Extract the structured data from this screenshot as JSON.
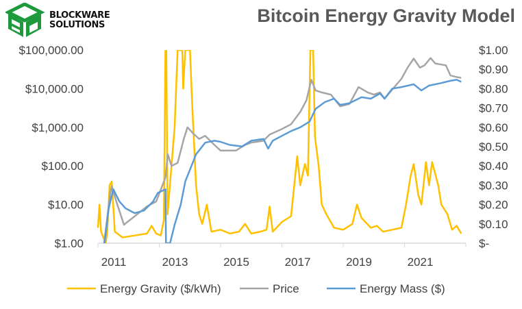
{
  "brand": {
    "line1": "BLOCKWARE",
    "line2": "SOLUTIONS"
  },
  "chart_data": {
    "type": "line",
    "title": "Bitcoin Energy Gravity Model",
    "x_ticks": [
      "2011",
      "2013",
      "2015",
      "2017",
      "2019",
      "2021"
    ],
    "xlim": [
      2011,
      2023.2
    ],
    "y_left": {
      "scale": "log",
      "range": [
        1,
        100000
      ],
      "ticks": [
        "$1.00",
        "$10.00",
        "$100.00",
        "$1,000.00",
        "$10,000.00",
        "$100,000.00"
      ]
    },
    "y_right": {
      "scale": "linear",
      "range": [
        0,
        1
      ],
      "ticks": [
        "$-",
        "$0.10",
        "$0.20",
        "$0.30",
        "$0.40",
        "$0.50",
        "$0.60",
        "$0.70",
        "$0.80",
        "$0.90",
        "$1.00"
      ]
    },
    "legend_position": "bottom",
    "colors": {
      "gravity": "#FFC000",
      "price": "#A5A5A5",
      "mass": "#5B9BD5",
      "axis": "#D9D9D9"
    },
    "series": [
      {
        "name": "Energy Gravity ($/kWh)",
        "axis": "right",
        "color": "#FFC000",
        "points": [
          [
            2011.0,
            0.08
          ],
          [
            2011.05,
            0.2
          ],
          [
            2011.1,
            0.06
          ],
          [
            2011.25,
            0.0
          ],
          [
            2011.3,
            0.05
          ],
          [
            2011.38,
            0.3
          ],
          [
            2011.45,
            0.32
          ],
          [
            2011.55,
            0.06
          ],
          [
            2011.8,
            0.03
          ],
          [
            2012.2,
            0.04
          ],
          [
            2012.6,
            0.05
          ],
          [
            2012.75,
            0.09
          ],
          [
            2012.9,
            0.05
          ],
          [
            2013.05,
            0.04
          ],
          [
            2013.15,
            0.12
          ],
          [
            2013.2,
            1.0
          ],
          [
            2013.23,
            1.0
          ],
          [
            2013.27,
            0.15
          ],
          [
            2013.5,
            0.6
          ],
          [
            2013.6,
            1.0
          ],
          [
            2013.75,
            1.0
          ],
          [
            2013.78,
            0.8
          ],
          [
            2013.85,
            1.0
          ],
          [
            2014.0,
            1.0
          ],
          [
            2014.08,
            0.7
          ],
          [
            2014.2,
            0.3
          ],
          [
            2014.3,
            0.15
          ],
          [
            2014.4,
            0.1
          ],
          [
            2014.55,
            0.2
          ],
          [
            2014.7,
            0.06
          ],
          [
            2015.0,
            0.07
          ],
          [
            2015.3,
            0.05
          ],
          [
            2015.6,
            0.06
          ],
          [
            2015.8,
            0.1
          ],
          [
            2016.0,
            0.05
          ],
          [
            2016.3,
            0.06
          ],
          [
            2016.5,
            0.07
          ],
          [
            2016.6,
            0.19
          ],
          [
            2016.7,
            0.06
          ],
          [
            2017.0,
            0.11
          ],
          [
            2017.3,
            0.14
          ],
          [
            2017.5,
            0.45
          ],
          [
            2017.6,
            0.3
          ],
          [
            2017.75,
            0.41
          ],
          [
            2017.85,
            0.35
          ],
          [
            2017.93,
            1.0
          ],
          [
            2018.02,
            1.0
          ],
          [
            2018.08,
            0.55
          ],
          [
            2018.2,
            0.4
          ],
          [
            2018.3,
            0.2
          ],
          [
            2018.45,
            0.15
          ],
          [
            2018.7,
            0.08
          ],
          [
            2019.0,
            0.07
          ],
          [
            2019.3,
            0.1
          ],
          [
            2019.45,
            0.2
          ],
          [
            2019.6,
            0.13
          ],
          [
            2019.9,
            0.08
          ],
          [
            2020.1,
            0.09
          ],
          [
            2020.3,
            0.06
          ],
          [
            2020.6,
            0.07
          ],
          [
            2020.9,
            0.08
          ],
          [
            2021.05,
            0.2
          ],
          [
            2021.2,
            0.35
          ],
          [
            2021.3,
            0.41
          ],
          [
            2021.45,
            0.25
          ],
          [
            2021.55,
            0.2
          ],
          [
            2021.7,
            0.42
          ],
          [
            2021.8,
            0.3
          ],
          [
            2021.9,
            0.42
          ],
          [
            2022.1,
            0.3
          ],
          [
            2022.2,
            0.2
          ],
          [
            2022.4,
            0.15
          ],
          [
            2022.55,
            0.07
          ],
          [
            2022.7,
            0.09
          ],
          [
            2022.85,
            0.05
          ]
        ]
      },
      {
        "name": "Price",
        "axis": "left",
        "color": "#A5A5A5",
        "points": [
          [
            2011.0,
            0.7
          ],
          [
            2011.2,
            1.0
          ],
          [
            2011.4,
            20
          ],
          [
            2011.45,
            30
          ],
          [
            2011.6,
            12
          ],
          [
            2011.85,
            3
          ],
          [
            2011.95,
            3.5
          ],
          [
            2012.2,
            5
          ],
          [
            2012.6,
            9
          ],
          [
            2012.9,
            12
          ],
          [
            2013.2,
            50
          ],
          [
            2013.28,
            200
          ],
          [
            2013.4,
            100
          ],
          [
            2013.6,
            120
          ],
          [
            2013.8,
            500
          ],
          [
            2013.92,
            1000
          ],
          [
            2014.1,
            700
          ],
          [
            2014.3,
            500
          ],
          [
            2014.5,
            600
          ],
          [
            2014.8,
            350
          ],
          [
            2015.0,
            250
          ],
          [
            2015.5,
            250
          ],
          [
            2015.8,
            350
          ],
          [
            2016.0,
            400
          ],
          [
            2016.4,
            450
          ],
          [
            2016.6,
            650
          ],
          [
            2017.0,
            900
          ],
          [
            2017.3,
            1200
          ],
          [
            2017.6,
            2500
          ],
          [
            2017.8,
            5000
          ],
          [
            2017.96,
            17000
          ],
          [
            2018.1,
            9000
          ],
          [
            2018.3,
            8000
          ],
          [
            2018.6,
            7000
          ],
          [
            2018.9,
            3500
          ],
          [
            2019.2,
            4000
          ],
          [
            2019.5,
            11000
          ],
          [
            2019.8,
            8000
          ],
          [
            2020.0,
            7000
          ],
          [
            2020.2,
            8000
          ],
          [
            2020.35,
            5500
          ],
          [
            2020.6,
            9500
          ],
          [
            2020.9,
            18000
          ],
          [
            2021.1,
            35000
          ],
          [
            2021.3,
            60000
          ],
          [
            2021.5,
            35000
          ],
          [
            2021.65,
            40000
          ],
          [
            2021.85,
            62000
          ],
          [
            2022.0,
            45000
          ],
          [
            2022.2,
            42000
          ],
          [
            2022.35,
            40000
          ],
          [
            2022.5,
            22000
          ],
          [
            2022.7,
            20000
          ],
          [
            2022.85,
            19000
          ]
        ]
      },
      {
        "name": "Energy Mass ($)",
        "axis": "left",
        "color": "#5B9BD5",
        "points": [
          [
            2011.0,
            0.3
          ],
          [
            2011.2,
            0.8
          ],
          [
            2011.35,
            8
          ],
          [
            2011.5,
            25
          ],
          [
            2011.7,
            12
          ],
          [
            2011.9,
            8
          ],
          [
            2012.2,
            6
          ],
          [
            2012.5,
            7
          ],
          [
            2012.8,
            12
          ],
          [
            2012.95,
            20
          ],
          [
            2013.2,
            25
          ],
          [
            2013.22,
            1.0
          ],
          [
            2013.35,
            1.0
          ],
          [
            2013.5,
            3
          ],
          [
            2013.7,
            10
          ],
          [
            2013.85,
            40
          ],
          [
            2014.0,
            80
          ],
          [
            2014.2,
            200
          ],
          [
            2014.5,
            400
          ],
          [
            2014.8,
            450
          ],
          [
            2015.0,
            420
          ],
          [
            2015.3,
            350
          ],
          [
            2015.7,
            320
          ],
          [
            2016.0,
            450
          ],
          [
            2016.4,
            500
          ],
          [
            2016.55,
            280
          ],
          [
            2016.7,
            450
          ],
          [
            2017.0,
            600
          ],
          [
            2017.3,
            800
          ],
          [
            2017.6,
            1000
          ],
          [
            2017.9,
            1400
          ],
          [
            2018.1,
            3000
          ],
          [
            2018.4,
            4500
          ],
          [
            2018.7,
            5500
          ],
          [
            2018.9,
            3800
          ],
          [
            2019.2,
            4200
          ],
          [
            2019.6,
            6000
          ],
          [
            2019.9,
            5500
          ],
          [
            2020.2,
            7500
          ],
          [
            2020.35,
            5500
          ],
          [
            2020.6,
            10000
          ],
          [
            2020.9,
            11000
          ],
          [
            2021.3,
            13000
          ],
          [
            2021.55,
            9000
          ],
          [
            2021.8,
            12000
          ],
          [
            2022.2,
            14000
          ],
          [
            2022.5,
            16000
          ],
          [
            2022.7,
            17000
          ],
          [
            2022.85,
            15000
          ]
        ]
      }
    ]
  }
}
